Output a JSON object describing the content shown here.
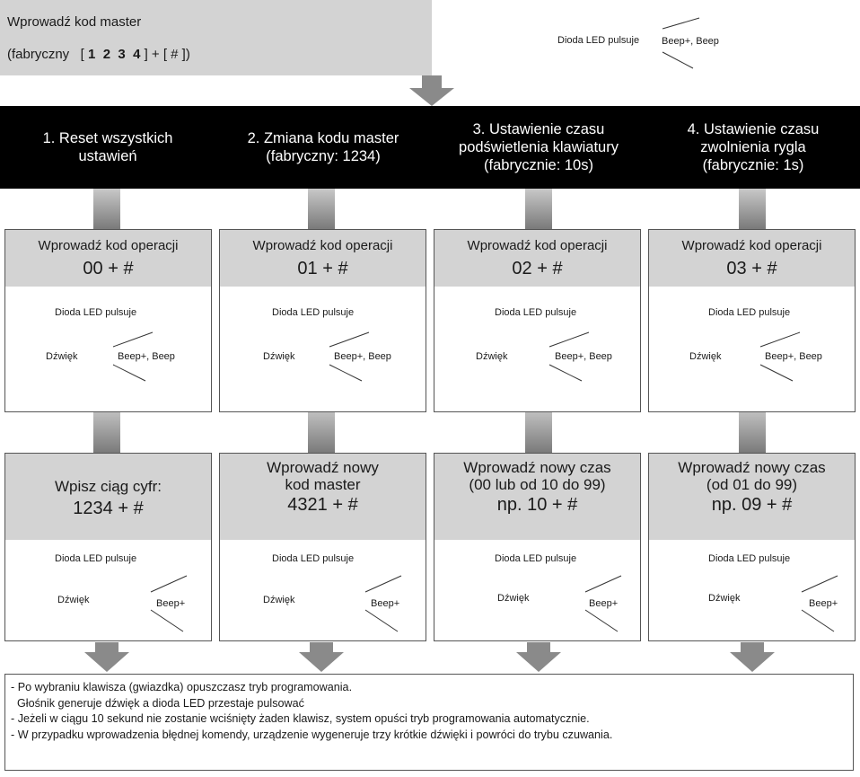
{
  "top": {
    "line1": "Wprowadź kod master",
    "line2_prefix": "(fabryczny   [ ",
    "line2_digits": "1  2  3  4",
    "line2_suffix": " ] + [ # ])",
    "led": "Dioda LED pulsuje",
    "beep": "Beep+, Beep"
  },
  "columns": [
    {
      "header": [
        "1. Reset wszystkich",
        "ustawień"
      ],
      "op_title": "Wprowadź kod operacji",
      "op_code": "00 + #",
      "led": "Dioda LED pulsuje",
      "sound": "Dźwięk",
      "beep": "Beep+, Beep",
      "step2": [
        "Wpisz ciąg cyfr:",
        "1234 + #"
      ],
      "led2": "Dioda LED pulsuje",
      "sound2": "Dźwięk",
      "beep2": "Beep+"
    },
    {
      "header": [
        "2. Zmiana kodu master",
        "(fabryczny: 1234)"
      ],
      "op_title": "Wprowadź kod operacji",
      "op_code": "01 + #",
      "led": "Dioda LED pulsuje",
      "sound": "Dźwięk",
      "beep": "Beep+, Beep",
      "step2": [
        "Wprowadź nowy",
        "kod master",
        "4321 + #"
      ],
      "led2": "Dioda LED pulsuje",
      "sound2": "Dźwięk",
      "beep2": "Beep+"
    },
    {
      "header": [
        "3. Ustawienie czasu",
        "podświetlenia klawiatury",
        "(fabrycznie: 10s)"
      ],
      "op_title": "Wprowadź kod operacji",
      "op_code": "02 + #",
      "led": "Dioda LED pulsuje",
      "sound": "Dźwięk",
      "beep": "Beep+, Beep",
      "step2": [
        "Wprowadź nowy czas",
        "(00 lub od 10 do 99)",
        "np. 10 + #"
      ],
      "led2": "Dioda LED pulsuje",
      "sound2": "Dźwięk",
      "beep2": "Beep+"
    },
    {
      "header": [
        "4. Ustawienie czasu",
        "zwolnienia rygla",
        "(fabrycznie: 1s)"
      ],
      "op_title": "Wprowadź kod operacji",
      "op_code": "03 + #",
      "led": "Dioda LED pulsuje",
      "sound": "Dźwięk",
      "beep": "Beep+, Beep",
      "step2": [
        "Wprowadź nowy czas",
        "(od 01 do 99)",
        "np. 09 + #"
      ],
      "led2": "Dioda LED pulsuje",
      "sound2": "Dźwięk",
      "beep2": "Beep+"
    }
  ],
  "notes": [
    "- Po wybraniu klawisza (gwiazdka) opuszczasz tryb programowania.",
    "  Głośnik generuje dźwięk a dioda LED przestaje pulsować",
    "- Jeżeli w ciągu 10 sekund nie zostanie wciśnięty żaden klawisz, system opuści tryb programowania automatycznie.",
    "- W przypadku wprowadzenia błędnej komendy, urządzenie wygeneruje trzy krótkie dźwięki i powróci do trybu czuwania."
  ],
  "colors": {
    "gray": "#d3d3d3",
    "arrow": "#8a8a8a",
    "header_bg": "#000000"
  }
}
